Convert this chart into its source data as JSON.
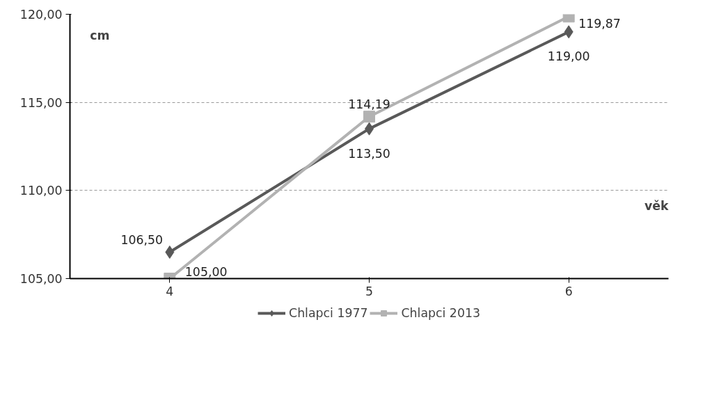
{
  "chart_data": {
    "type": "line",
    "categories": [
      "4",
      "5",
      "6"
    ],
    "xlabel": "věk",
    "ylabel": "cm",
    "series": [
      {
        "name": "Chlapci 1977",
        "color": "#595959",
        "marker": "diamond",
        "values": [
          106.5,
          113.5,
          119.0
        ],
        "value_labels": [
          "106,50",
          "113,50",
          "119,00"
        ]
      },
      {
        "name": "Chlapci 2013",
        "color": "#b2b2b2",
        "marker": "square",
        "values": [
          105.0,
          114.19,
          119.87
        ],
        "value_labels": [
          "105,00",
          "114,19",
          "119,87"
        ]
      }
    ],
    "ylim": [
      105,
      120
    ],
    "yticks": [
      {
        "value": 105,
        "label": "105,00"
      },
      {
        "value": 110,
        "label": "110,00"
      },
      {
        "value": 115,
        "label": "115,00"
      },
      {
        "value": 120,
        "label": "120,00"
      }
    ],
    "grid": "y",
    "legend": "bottom",
    "line_style": "solid"
  }
}
